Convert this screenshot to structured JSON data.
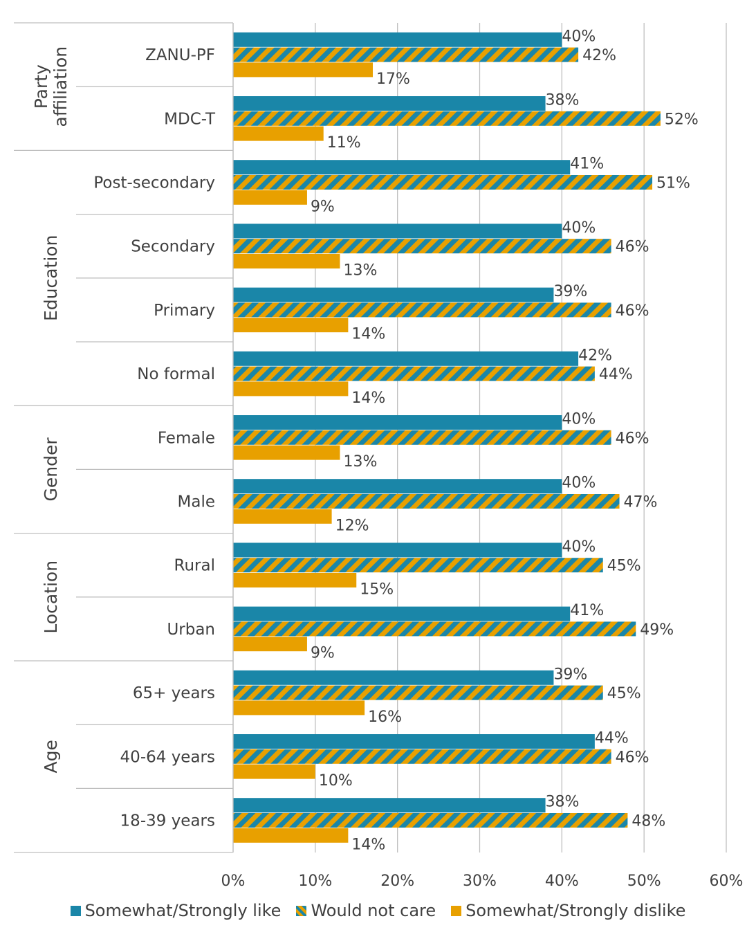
{
  "chart_data": {
    "type": "bar",
    "orientation": "horizontal",
    "groups": [
      {
        "label": "Party affiliation",
        "categories": [
          "ZANU-PF",
          "MDC-T"
        ]
      },
      {
        "label": "Education",
        "categories": [
          "Post-secondary",
          "Secondary",
          "Primary",
          "No formal"
        ]
      },
      {
        "label": "Gender",
        "categories": [
          "Female",
          "Male"
        ]
      },
      {
        "label": "Location",
        "categories": [
          "Rural",
          "Urban"
        ]
      },
      {
        "label": "Age",
        "categories": [
          "65+ years",
          "40-64 years",
          "18-39 years"
        ]
      }
    ],
    "categories": [
      "ZANU-PF",
      "MDC-T",
      "Post-secondary",
      "Secondary",
      "Primary",
      "No formal",
      "Female",
      "Male",
      "Rural",
      "Urban",
      "65+ years",
      "40-64 years",
      "18-39 years"
    ],
    "series": [
      {
        "name": "Somewhat/Strongly like",
        "color": "#1a86a8",
        "pattern": "solid",
        "values": [
          40,
          38,
          41,
          40,
          39,
          42,
          40,
          40,
          40,
          41,
          39,
          44,
          38
        ],
        "labels": [
          "40%",
          "38%",
          "41%",
          "40%",
          "39%",
          "42%",
          "40%",
          "40%",
          "40%",
          "41%",
          "39%",
          "44%",
          "38%"
        ]
      },
      {
        "name": "Would not care",
        "color": "#1a86a8",
        "color2": "#e8a000",
        "pattern": "diagonal-stripes",
        "values": [
          42,
          52,
          51,
          46,
          46,
          44,
          46,
          47,
          45,
          49,
          45,
          46,
          48
        ],
        "labels": [
          "42%",
          "52%",
          "51%",
          "46%",
          "46%",
          "44%",
          "46%",
          "47%",
          "45%",
          "49%",
          "45%",
          "46%",
          "48%"
        ]
      },
      {
        "name": "Somewhat/Strongly dislike",
        "color": "#e8a000",
        "pattern": "solid",
        "values": [
          17,
          11,
          9,
          13,
          14,
          14,
          13,
          12,
          15,
          9,
          16,
          10,
          14
        ],
        "labels": [
          "17%",
          "11%",
          "9%",
          "13%",
          "14%",
          "14%",
          "13%",
          "12%",
          "15%",
          "9%",
          "16%",
          "10%",
          "14%"
        ]
      }
    ],
    "xlim": [
      0,
      60
    ],
    "xticks": [
      "0%",
      "10%",
      "20%",
      "30%",
      "40%",
      "50%",
      "60%"
    ],
    "grid": true,
    "legend_position": "bottom"
  }
}
